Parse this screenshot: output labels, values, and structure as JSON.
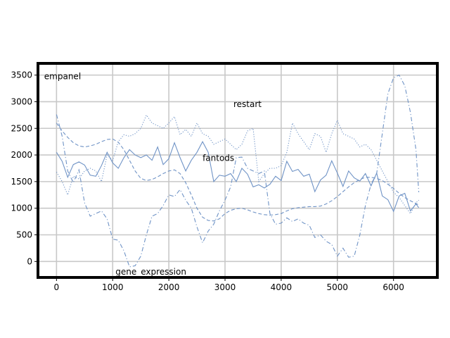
{
  "chart_data": {
    "type": "line",
    "title": "",
    "xlabel": "",
    "ylabel": "",
    "xlim": [
      -330,
      6780
    ],
    "ylim": [
      -300,
      3720
    ],
    "grid": true,
    "line_color": "#6f93c6",
    "xticks": [
      0,
      1000,
      2000,
      3000,
      4000,
      5000,
      6000
    ],
    "xtick_labels": [
      "0",
      "1000",
      "2000",
      "3000",
      "4000",
      "5000",
      "6000"
    ],
    "yticks": [
      0,
      500,
      1000,
      1500,
      2000,
      2500,
      3000,
      3500
    ],
    "ytick_labels": [
      "0",
      "500",
      "1000",
      "1500",
      "2000",
      "2500",
      "3000",
      "3500"
    ],
    "annotations": [
      {
        "text": "empanel",
        "x": -220,
        "y": 3420
      },
      {
        "text": "restart",
        "x": 3150,
        "y": 2900
      },
      {
        "text": "fantods",
        "x": 2600,
        "y": 1890
      },
      {
        "text": "gene_expression",
        "x": 1050,
        "y": -250
      }
    ],
    "series": [
      {
        "style": "solid",
        "x": [
          0,
          100,
          200,
          300,
          400,
          500,
          600,
          700,
          800,
          900,
          1000,
          1100,
          1200,
          1300,
          1400,
          1500,
          1600,
          1700,
          1800,
          1900,
          2000,
          2100,
          2200,
          2300,
          2400,
          2500,
          2600,
          2700,
          2800,
          2900,
          3000,
          3100,
          3200,
          3300,
          3400,
          3500,
          3600,
          3700,
          3800,
          3900,
          4000,
          4100,
          4200,
          4300,
          4400,
          4500,
          4600,
          4700,
          4800,
          4900,
          5000,
          5100,
          5200,
          5300,
          5400,
          5500,
          5600,
          5700,
          5800,
          5900,
          6000,
          6100,
          6200,
          6300,
          6400,
          6450
        ],
        "y": [
          2050,
          1880,
          1580,
          1820,
          1870,
          1810,
          1620,
          1600,
          1800,
          2050,
          1850,
          1750,
          1950,
          2100,
          2000,
          1950,
          2000,
          1900,
          2150,
          1820,
          1930,
          2230,
          1950,
          1700,
          1900,
          2050,
          2250,
          2050,
          1500,
          1620,
          1600,
          1650,
          1500,
          1750,
          1640,
          1400,
          1440,
          1380,
          1450,
          1600,
          1520,
          1880,
          1690,
          1730,
          1600,
          1640,
          1310,
          1530,
          1620,
          1890,
          1660,
          1410,
          1700,
          1570,
          1510,
          1650,
          1420,
          1660,
          1230,
          1160,
          940,
          1230,
          1280,
          950,
          1080,
          1010
        ]
      },
      {
        "style": "dotted",
        "x": [
          0,
          100,
          200,
          300,
          400,
          500,
          600,
          700,
          800,
          900,
          1000,
          1100,
          1200,
          1300,
          1400,
          1500,
          1600,
          1700,
          1800,
          1900,
          2000,
          2100,
          2200,
          2300,
          2400,
          2500,
          2600,
          2700,
          2800,
          2900,
          3000,
          3100,
          3200,
          3300,
          3400,
          3500,
          3600,
          3700,
          3800,
          3900,
          4000,
          4100,
          4200,
          4300,
          4400,
          4500,
          4600,
          4700,
          4800,
          4900,
          5000,
          5100,
          5200,
          5300,
          5400,
          5500,
          5600,
          5700,
          5800,
          5900,
          6000,
          6100,
          6200,
          6300,
          6400,
          6450
        ],
        "y": [
          1680,
          1500,
          1250,
          1600,
          1550,
          1700,
          1750,
          1700,
          1500,
          2000,
          1900,
          2250,
          2380,
          2350,
          2400,
          2500,
          2750,
          2600,
          2550,
          2500,
          2600,
          2720,
          2380,
          2480,
          2350,
          2600,
          2400,
          2350,
          2200,
          2250,
          2300,
          2200,
          2100,
          2200,
          2450,
          2500,
          1500,
          1650,
          1750,
          1750,
          1800,
          2050,
          2600,
          2400,
          2250,
          2100,
          2400,
          2350,
          2050,
          2400,
          2650,
          2400,
          2350,
          2300,
          2150,
          2200,
          2100,
          1900,
          1700,
          1500,
          1300,
          1200,
          1050,
          900,
          1100,
          1150
        ]
      },
      {
        "style": "dashed",
        "x": [
          0,
          100,
          200,
          300,
          400,
          500,
          600,
          700,
          800,
          900,
          1000,
          1100,
          1200,
          1300,
          1400,
          1500,
          1600,
          1700,
          1800,
          1900,
          2000,
          2100,
          2200,
          2300,
          2400,
          2500,
          2600,
          2700,
          2800,
          2900,
          3000,
          3100,
          3200,
          3300,
          3400,
          3500,
          3600,
          3700,
          3800,
          3900,
          4000,
          4100,
          4200,
          4300,
          4400,
          4500,
          4600,
          4700,
          4800,
          4900,
          5000,
          5100,
          5200,
          5300,
          5400,
          5500,
          5600,
          5700,
          5800,
          5900,
          6000,
          6100,
          6200,
          6300,
          6400,
          6450
        ],
        "y": [
          2600,
          2450,
          2330,
          2230,
          2170,
          2150,
          2170,
          2200,
          2250,
          2290,
          2300,
          2240,
          2100,
          1900,
          1700,
          1560,
          1520,
          1540,
          1590,
          1650,
          1700,
          1720,
          1650,
          1480,
          1250,
          1000,
          830,
          770,
          760,
          800,
          900,
          960,
          990,
          1000,
          970,
          930,
          900,
          880,
          870,
          880,
          900,
          950,
          990,
          1010,
          1020,
          1030,
          1030,
          1040,
          1080,
          1140,
          1220,
          1310,
          1400,
          1480,
          1540,
          1580,
          1580,
          1560,
          1520,
          1450,
          1370,
          1280,
          1200,
          1140,
          1090,
          1060
        ]
      },
      {
        "style": "dashdot",
        "x": [
          0,
          100,
          200,
          300,
          400,
          500,
          600,
          700,
          800,
          900,
          1000,
          1100,
          1200,
          1300,
          1400,
          1500,
          1600,
          1700,
          1800,
          1900,
          2000,
          2100,
          2200,
          2300,
          2400,
          2500,
          2600,
          2700,
          2800,
          2900,
          3000,
          3100,
          3200,
          3300,
          3400,
          3500,
          3600,
          3700,
          3800,
          3900,
          4000,
          4100,
          4200,
          4300,
          4400,
          4500,
          4600,
          4700,
          4800,
          4900,
          5000,
          5100,
          5200,
          5300,
          5400,
          5500,
          5600,
          5700,
          5800,
          5900,
          6000,
          6100,
          6200,
          6300,
          6400,
          6450
        ],
        "y": [
          2760,
          2350,
          1700,
          1480,
          1720,
          1100,
          850,
          900,
          950,
          800,
          420,
          400,
          200,
          -100,
          -80,
          100,
          500,
          850,
          900,
          1050,
          1250,
          1220,
          1350,
          1150,
          1000,
          650,
          350,
          570,
          700,
          950,
          1150,
          1400,
          1950,
          1960,
          1750,
          1700,
          1650,
          1700,
          900,
          700,
          720,
          820,
          750,
          800,
          720,
          680,
          450,
          500,
          380,
          320,
          100,
          250,
          80,
          100,
          500,
          1050,
          1450,
          1650,
          2400,
          3150,
          3450,
          3500,
          3300,
          2800,
          2100,
          1300
        ]
      }
    ]
  }
}
